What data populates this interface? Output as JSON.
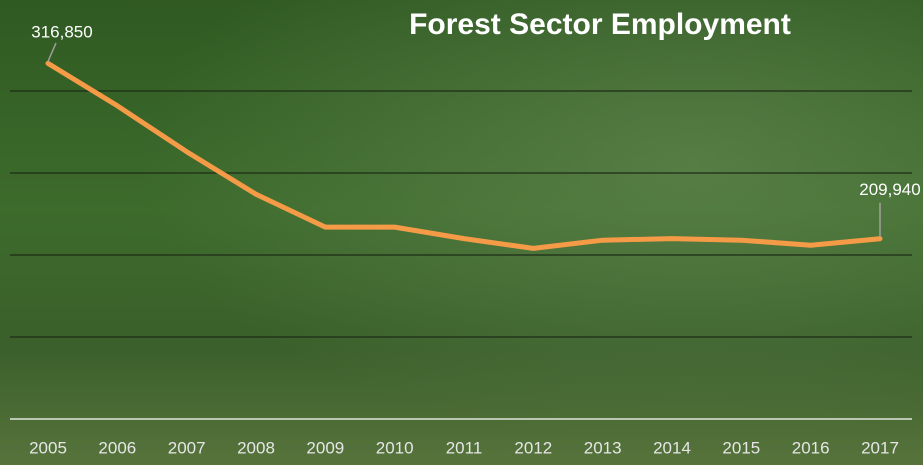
{
  "chart_data": {
    "type": "line",
    "title": "Forest Sector Employment",
    "categories": [
      "2005",
      "2006",
      "2007",
      "2008",
      "2009",
      "2010",
      "2011",
      "2012",
      "2013",
      "2014",
      "2015",
      "2016",
      "2017"
    ],
    "series": [
      {
        "name": "Forest Sector Employment",
        "color": "#f59b47",
        "values": [
          316850,
          291000,
          263000,
          237000,
          217000,
          217000,
          210000,
          204000,
          209000,
          210000,
          209000,
          206000,
          209940
        ],
        "value_labels": [
          "316,850",
          null,
          null,
          null,
          null,
          null,
          null,
          null,
          null,
          null,
          null,
          null,
          "209,940"
        ]
      }
    ],
    "ylim": [
      100000,
      350000
    ],
    "yticks": [
      100000,
      150000,
      200000,
      250000,
      300000
    ],
    "grid": true
  }
}
